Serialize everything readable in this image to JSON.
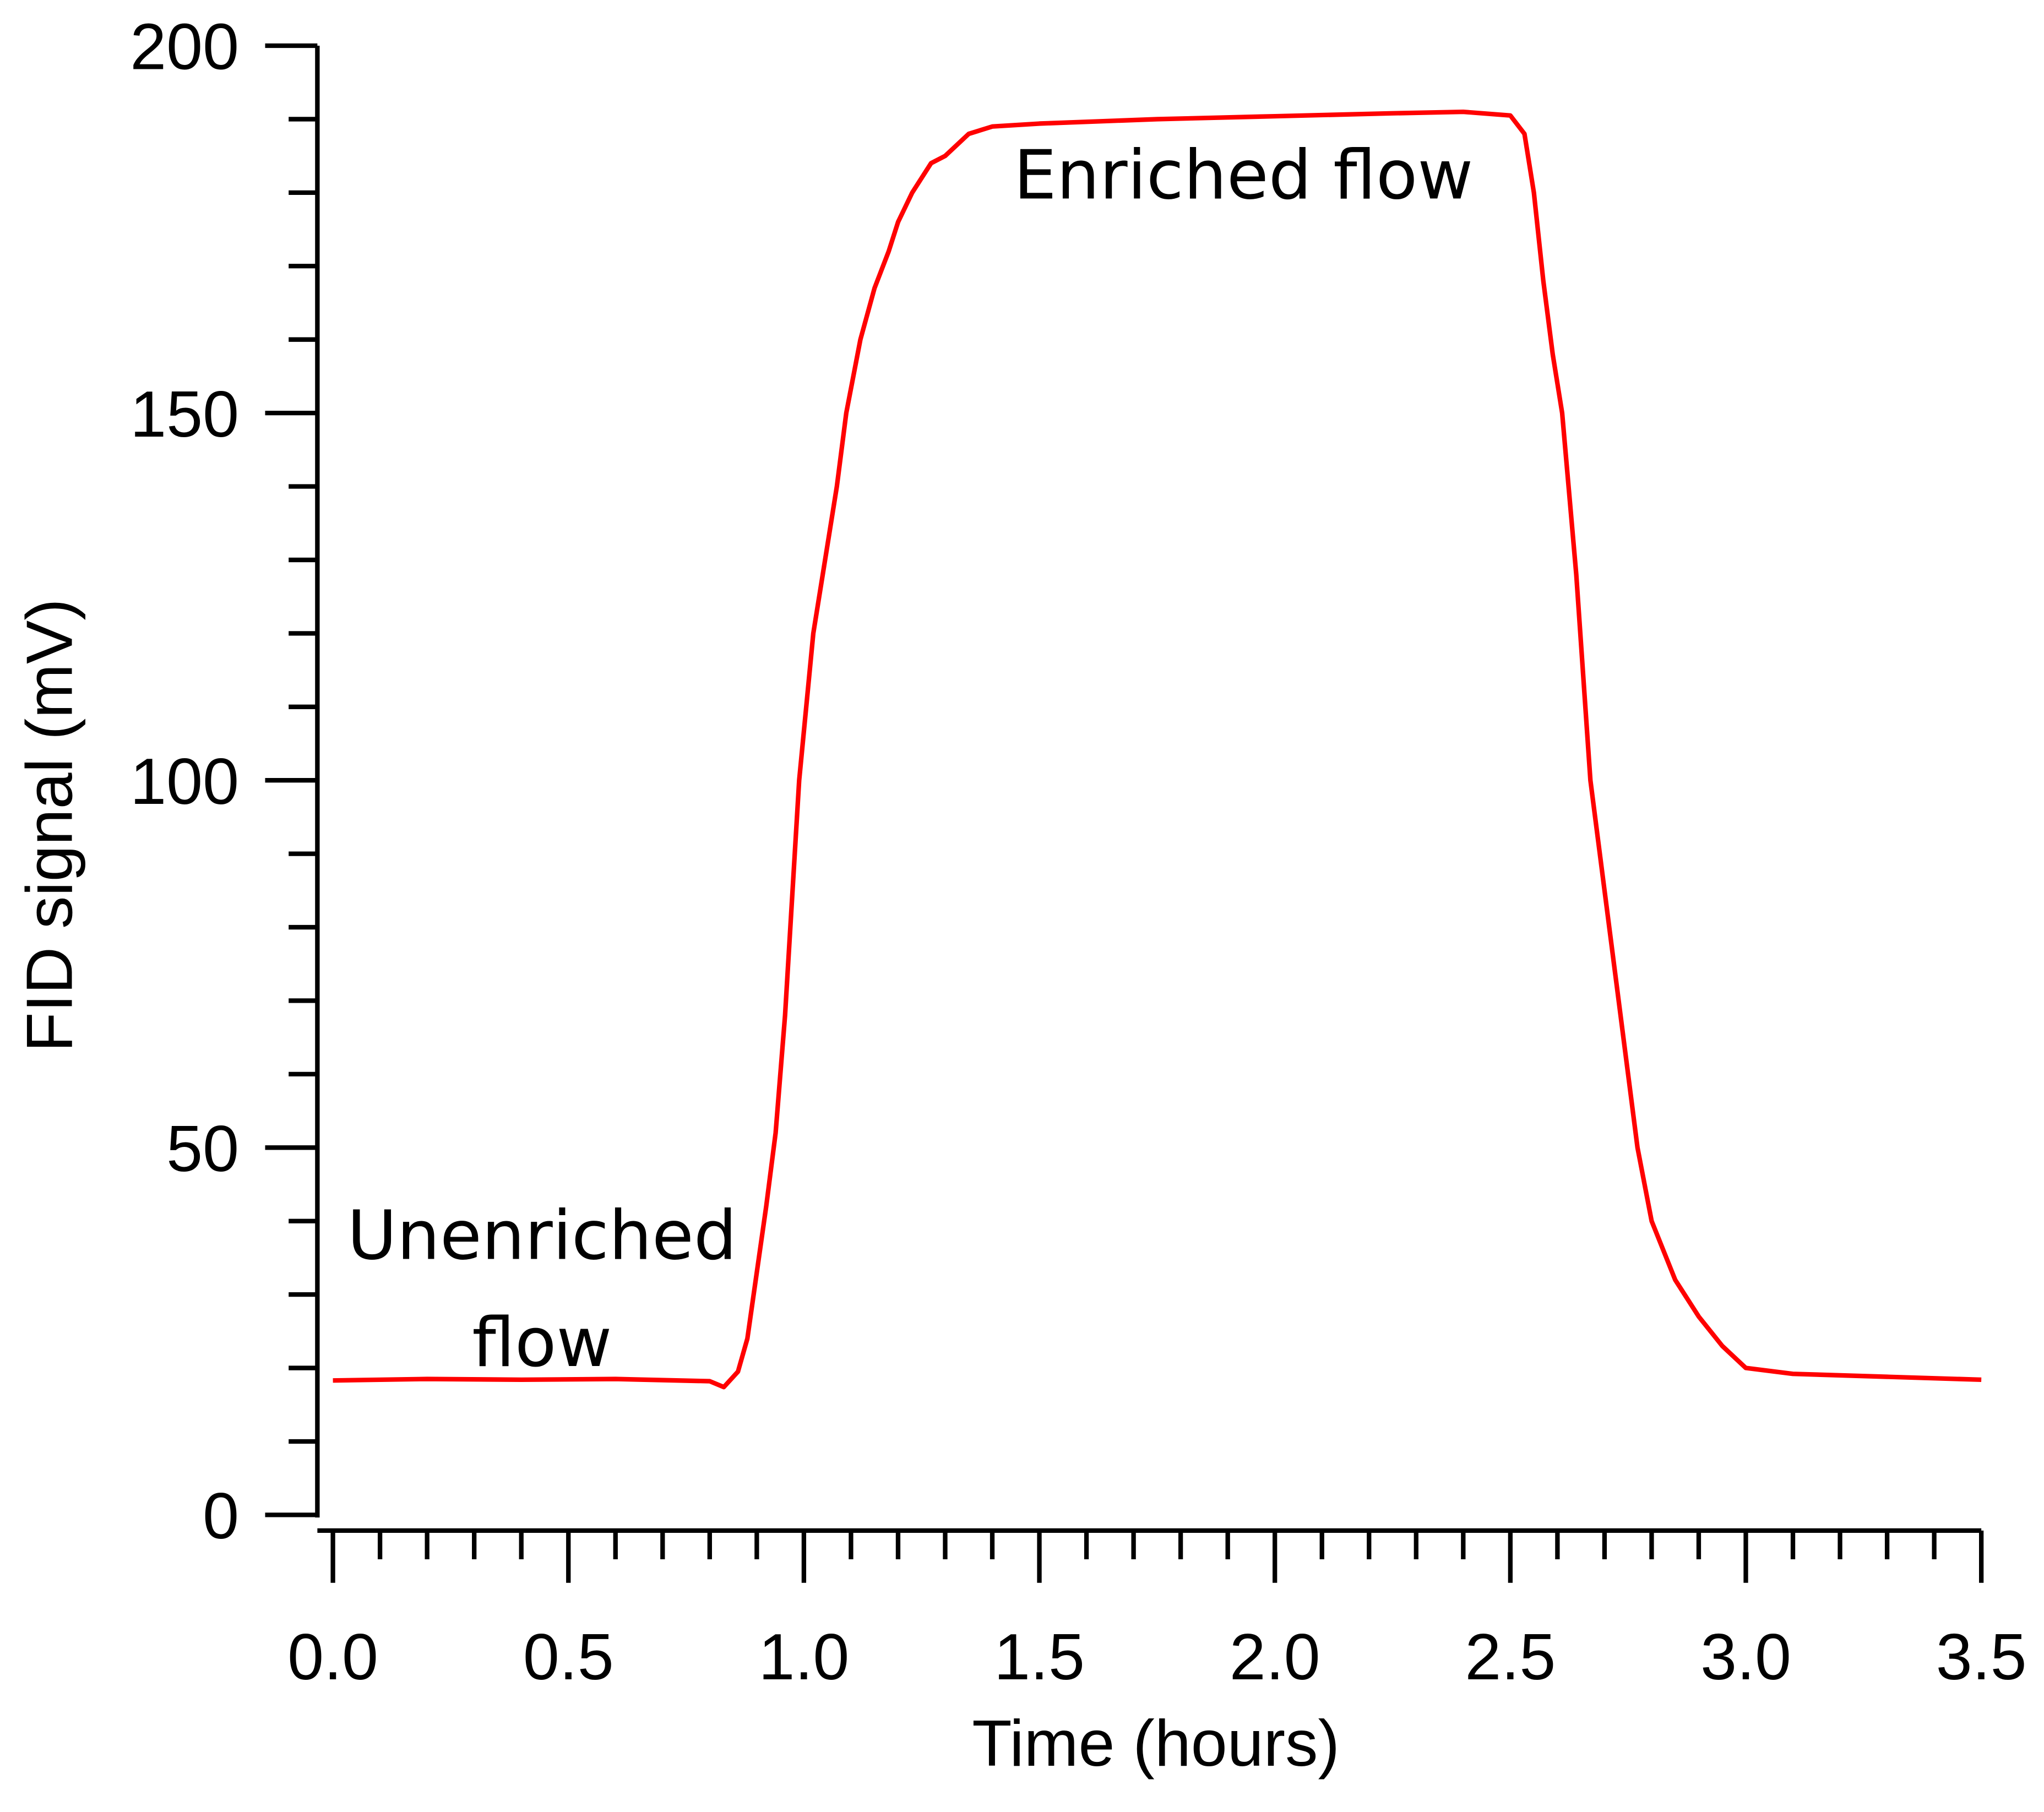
{
  "chart_data": {
    "type": "line",
    "xlabel": "Time (hours)",
    "ylabel": "FID signal (mV)",
    "x": [
      0,
      0.2,
      0.4,
      0.6,
      0.8,
      0.83,
      0.86,
      0.88,
      0.9,
      0.92,
      0.94,
      0.96,
      0.99,
      1.02,
      1.045,
      1.07,
      1.09,
      1.12,
      1.15,
      1.18,
      1.2,
      1.23,
      1.27,
      1.3,
      1.35,
      1.4,
      1.5,
      1.75,
      2.0,
      2.25,
      2.4,
      2.5,
      2.53,
      2.55,
      2.57,
      2.59,
      2.61,
      2.64,
      2.67,
      2.7,
      2.73,
      2.77,
      2.8,
      2.85,
      2.9,
      2.95,
      3.0,
      3.1,
      3.3,
      3.5
    ],
    "series": [
      {
        "name": "FID signal",
        "color": "#ff0000",
        "values": [
          18.3,
          18.5,
          18.4,
          18.5,
          18.2,
          17.4,
          19.5,
          24,
          33,
          42,
          52,
          68,
          100,
          120,
          130,
          140,
          150,
          160,
          167,
          172,
          176,
          180,
          184,
          185,
          188,
          189,
          189.4,
          190,
          190.4,
          190.8,
          191,
          190.5,
          188,
          180,
          168,
          158,
          150,
          128,
          100,
          85,
          70,
          50,
          40,
          32,
          27,
          23,
          20,
          19.2,
          18.8,
          18.4
        ]
      }
    ],
    "xlim": [
      -0.033,
      3.5
    ],
    "ylim": [
      0,
      200
    ],
    "xticks": [
      {
        "value": 0,
        "label": "0.0"
      },
      0.5,
      {
        "value": 1,
        "label": "1.0"
      },
      1.5,
      {
        "value": 2,
        "label": "2.0"
      },
      2.5,
      {
        "value": 3,
        "label": "3.0"
      },
      3.5
    ],
    "xminorticks": [
      0.1,
      0.2,
      0.3,
      0.4,
      0.6,
      0.7,
      0.8,
      0.9,
      1.1,
      1.2,
      1.3,
      1.4,
      1.6,
      1.7,
      1.8,
      1.9,
      2.1,
      2.2,
      2.3,
      2.4,
      2.6,
      2.7,
      2.8,
      2.9,
      3.1,
      3.2,
      3.3,
      3.4
    ],
    "yticks": [
      0,
      50,
      100,
      150,
      200
    ],
    "yminorticks": [
      10,
      20,
      30,
      40,
      60,
      70,
      80,
      90,
      110,
      120,
      130,
      140,
      160,
      170,
      180,
      190
    ],
    "annotations": [
      {
        "lines": [
          "Unenriched",
          "flow"
        ]
      },
      {
        "lines": [
          "Enriched flow"
        ]
      }
    ]
  }
}
